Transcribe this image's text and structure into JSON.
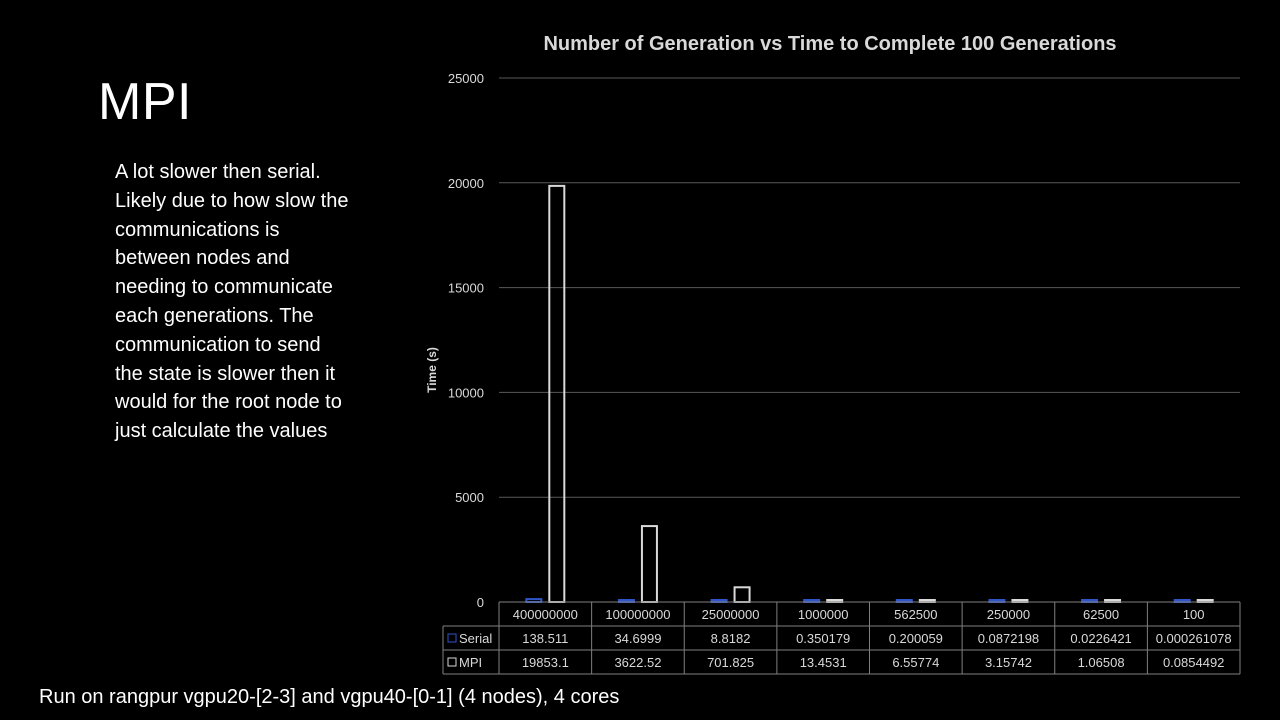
{
  "slide": {
    "title": "MPI",
    "notes": [
      "A lot slower then serial.",
      "Likely due to how slow the",
      "communications is",
      "between nodes and",
      "needing to communicate",
      "each generations. The",
      "communication to send",
      "the state is slower then it",
      "would for the root node to",
      "just calculate the values"
    ],
    "footer": "Run on rangpur  vgpu20-[2-3] and vgpu40-[0-1] (4 nodes), 4 cores"
  },
  "colors": {
    "background": "#000000",
    "serial": "#2f55c8",
    "mpi": "#d9d9d9",
    "grid": "#595959",
    "text": "#d9d9d9"
  },
  "chart_data": {
    "type": "bar",
    "title": "Number of Generation vs Time to Complete 100 Generations",
    "xlabel": "",
    "ylabel": "Time (s)",
    "ylim": [
      0,
      25000
    ],
    "yticks": [
      0,
      5000,
      10000,
      15000,
      20000,
      25000
    ],
    "ytick_labels": [
      "0",
      "5000",
      "10000",
      "15000",
      "20000",
      "25000"
    ],
    "grid": true,
    "legend": "data-table",
    "categories": [
      "400000000",
      "100000000",
      "25000000",
      "1000000",
      "562500",
      "250000",
      "62500",
      "100"
    ],
    "series": [
      {
        "name": "Serial",
        "values": [
          138.511,
          34.6999,
          8.8182,
          0.350179,
          0.200059,
          0.0872198,
          0.0226421,
          0.000261078
        ],
        "labels": [
          "138.511",
          "34.6999",
          "8.8182",
          "0.350179",
          "0.200059",
          "0.0872198",
          "0.0226421",
          "0.000261078"
        ]
      },
      {
        "name": "MPI",
        "values": [
          19853.1,
          3622.52,
          701.825,
          13.4531,
          6.55774,
          3.15742,
          1.06508,
          0.0854492
        ],
        "labels": [
          "19853.1",
          "3622.52",
          "701.825",
          "13.4531",
          "6.55774",
          "3.15742",
          "1.06508",
          "0.0854492"
        ]
      }
    ]
  }
}
